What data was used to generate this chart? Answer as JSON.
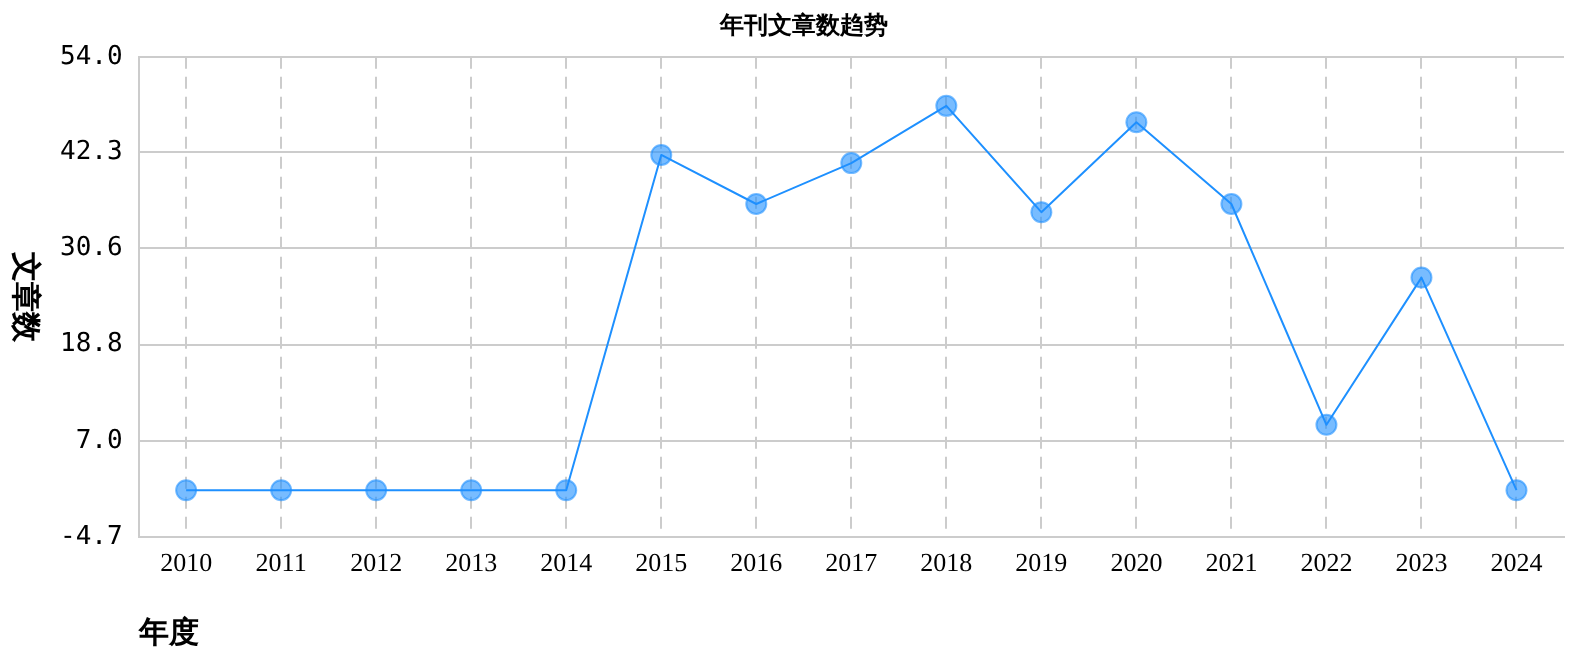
{
  "chart_data": {
    "type": "line",
    "title": "年刊文章数趋势",
    "xlabel": "年度",
    "ylabel": "文章数",
    "categories": [
      "2010",
      "2011",
      "2012",
      "2013",
      "2014",
      "2015",
      "2016",
      "2017",
      "2018",
      "2019",
      "2020",
      "2021",
      "2022",
      "2023",
      "2024"
    ],
    "series": [
      {
        "color": "#1e90ff",
        "values": [
          1,
          1,
          1,
          1,
          1,
          42,
          36,
          41,
          48,
          35,
          46,
          36,
          9,
          27,
          1
        ]
      }
    ],
    "ylim": [
      -4.7,
      54
    ],
    "yticks": [
      {
        "value": -4.7,
        "label": "-4.7"
      },
      {
        "value": 7,
        "label": "7.0"
      },
      {
        "value": 18.8,
        "label": "18.8"
      },
      {
        "value": 30.6,
        "label": "30.6"
      },
      {
        "value": 42.3,
        "label": "42.3"
      },
      {
        "value": 54,
        "label": "54.0"
      }
    ],
    "grid": true,
    "legend": false,
    "marker": "circle",
    "line_style": "solid"
  }
}
